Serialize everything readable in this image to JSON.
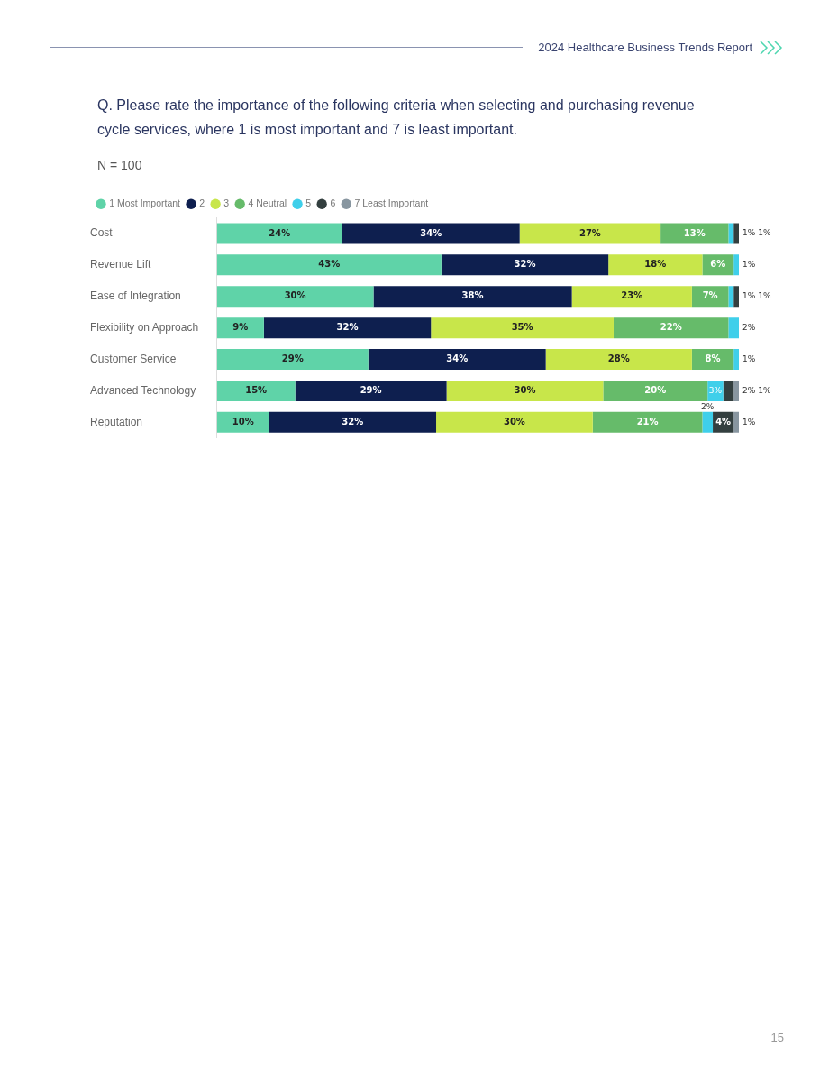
{
  "chart_data": {
    "type": "bar",
    "orientation": "horizontal",
    "stacked": true,
    "title": "Q. Please rate the importance of the following criteria when selecting and purchasing revenue cycle services, where 1 is most important and 7 is least important.",
    "subtitle": "N = 100",
    "annotations": [
      "2024 Healthcare Business Trends Report",
      "15"
    ],
    "categories": [
      "Cost",
      "Revenue Lift",
      "Ease of Integration",
      "Flexibility on Approach",
      "Customer Service",
      "Advanced Technology",
      "Reputation"
    ],
    "series": [
      {
        "name": "1 Most Important",
        "color": "#5fd3a8",
        "values": [
          24,
          43,
          30,
          9,
          29,
          15,
          10
        ],
        "value_labels": [
          "24%",
          "43%",
          "30%",
          "9%",
          "29%",
          "15%",
          "10%"
        ]
      },
      {
        "name": "2",
        "color": "#0e1f4f",
        "values": [
          34,
          32,
          38,
          32,
          34,
          29,
          32
        ],
        "value_labels": [
          "34%",
          "32%",
          "38%",
          "32%",
          "34%",
          "29%",
          "32%"
        ]
      },
      {
        "name": "3",
        "color": "#c8e64a",
        "values": [
          27,
          18,
          23,
          35,
          28,
          30,
          30
        ],
        "value_labels": [
          "27%",
          "18%",
          "23%",
          "35%",
          "28%",
          "30%",
          "30%"
        ]
      },
      {
        "name": "4 Neutral",
        "color": "#66bb6a",
        "values": [
          13,
          6,
          7,
          22,
          8,
          20,
          21
        ],
        "value_labels": [
          "13%",
          "6%",
          "7%",
          "22%",
          "8%",
          "20%",
          "21%"
        ]
      },
      {
        "name": "5",
        "color": "#3fcfea",
        "values": [
          1,
          1,
          1,
          2,
          1,
          3,
          2
        ],
        "value_labels": [
          "1%",
          "1%",
          "1%",
          "2%",
          "1%",
          "3%",
          "2%"
        ]
      },
      {
        "name": "6",
        "color": "#333f3f",
        "values": [
          1,
          0,
          1,
          0,
          0,
          2,
          4
        ],
        "value_labels": [
          "1%",
          null,
          "1%",
          null,
          null,
          "2%",
          "4%"
        ]
      },
      {
        "name": "7 Least Important",
        "color": "#8896a0",
        "values": [
          0,
          0,
          0,
          0,
          0,
          1,
          1
        ],
        "value_labels": [
          null,
          null,
          null,
          null,
          null,
          "1%",
          "1%"
        ]
      }
    ],
    "legend": "top left",
    "tick_labels": "y",
    "grid": false
  }
}
